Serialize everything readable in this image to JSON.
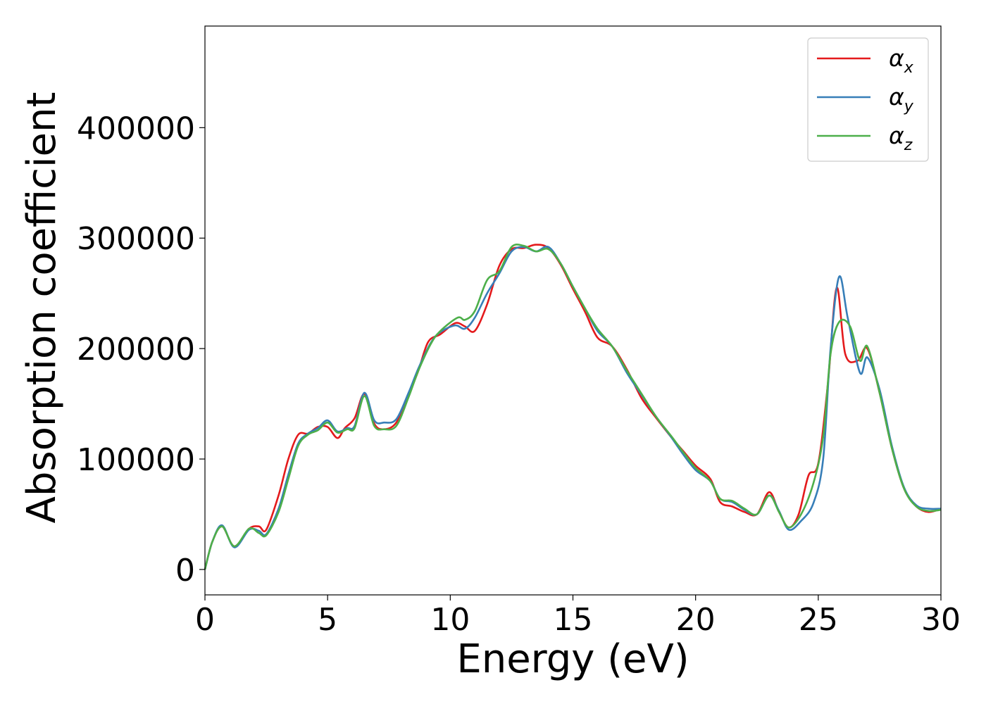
{
  "chart_data": {
    "type": "line",
    "title": "",
    "xlabel": "Energy (eV)",
    "ylabel": "Absorption coefficient",
    "xlim": [
      0,
      30
    ],
    "ylim": [
      -23000,
      492000
    ],
    "xticks": [
      0,
      5,
      10,
      15,
      20,
      25,
      30
    ],
    "yticks": [
      0,
      100000,
      200000,
      300000,
      400000
    ],
    "grid": false,
    "legend_position": "top-right",
    "series": [
      {
        "name": "α_x",
        "symbol": "α",
        "subscript": "x",
        "color": "#e41a1c",
        "points": [
          [
            0,
            0
          ],
          [
            0.3,
            25000
          ],
          [
            0.7,
            39000
          ],
          [
            1.2,
            21000
          ],
          [
            1.8,
            37000
          ],
          [
            2.2,
            39000
          ],
          [
            2.5,
            36000
          ],
          [
            3.0,
            67000
          ],
          [
            3.4,
            100000
          ],
          [
            3.8,
            122000
          ],
          [
            4.2,
            123000
          ],
          [
            4.6,
            129000
          ],
          [
            5.0,
            129000
          ],
          [
            5.4,
            119000
          ],
          [
            5.7,
            128000
          ],
          [
            6.1,
            137000
          ],
          [
            6.5,
            159000
          ],
          [
            6.9,
            132000
          ],
          [
            7.3,
            127000
          ],
          [
            7.8,
            133000
          ],
          [
            8.3,
            158000
          ],
          [
            8.7,
            180000
          ],
          [
            9.1,
            206000
          ],
          [
            9.6,
            213000
          ],
          [
            10.2,
            223000
          ],
          [
            10.6,
            220000
          ],
          [
            11.0,
            216000
          ],
          [
            11.5,
            240000
          ],
          [
            12.0,
            275000
          ],
          [
            12.5,
            290000
          ],
          [
            13.0,
            291000
          ],
          [
            13.5,
            294000
          ],
          [
            14.0,
            291000
          ],
          [
            14.5,
            276000
          ],
          [
            15.0,
            254000
          ],
          [
            15.5,
            233000
          ],
          [
            16.0,
            210000
          ],
          [
            16.6,
            202000
          ],
          [
            17.2,
            181000
          ],
          [
            17.8,
            155000
          ],
          [
            18.4,
            137000
          ],
          [
            19.0,
            120000
          ],
          [
            19.5,
            107000
          ],
          [
            20.0,
            94000
          ],
          [
            20.6,
            82000
          ],
          [
            21.0,
            61000
          ],
          [
            21.5,
            57000
          ],
          [
            22.0,
            52000
          ],
          [
            22.5,
            50000
          ],
          [
            23.0,
            70000
          ],
          [
            23.4,
            52000
          ],
          [
            23.8,
            38000
          ],
          [
            24.2,
            50000
          ],
          [
            24.6,
            85000
          ],
          [
            25.0,
            96000
          ],
          [
            25.4,
            170000
          ],
          [
            25.75,
            255000
          ],
          [
            26.1,
            195000
          ],
          [
            26.6,
            189000
          ],
          [
            27.0,
            200000
          ],
          [
            27.5,
            160000
          ],
          [
            28.0,
            110000
          ],
          [
            28.5,
            73000
          ],
          [
            29.0,
            57000
          ],
          [
            29.5,
            52000
          ],
          [
            30,
            55000
          ]
        ]
      },
      {
        "name": "α_y",
        "symbol": "α",
        "subscript": "y",
        "color": "#377eb8",
        "points": [
          [
            0,
            0
          ],
          [
            0.3,
            25000
          ],
          [
            0.7,
            40000
          ],
          [
            1.2,
            20000
          ],
          [
            1.8,
            36000
          ],
          [
            2.2,
            35000
          ],
          [
            2.5,
            32000
          ],
          [
            3.0,
            55000
          ],
          [
            3.4,
            86000
          ],
          [
            3.8,
            114000
          ],
          [
            4.2,
            123000
          ],
          [
            4.6,
            128000
          ],
          [
            5.0,
            135000
          ],
          [
            5.4,
            125000
          ],
          [
            5.8,
            128000
          ],
          [
            6.1,
            130000
          ],
          [
            6.5,
            160000
          ],
          [
            6.9,
            135000
          ],
          [
            7.3,
            133000
          ],
          [
            7.8,
            136000
          ],
          [
            8.3,
            160000
          ],
          [
            8.7,
            182000
          ],
          [
            9.2,
            205000
          ],
          [
            9.6,
            215000
          ],
          [
            10.2,
            221000
          ],
          [
            10.6,
            218000
          ],
          [
            11.0,
            228000
          ],
          [
            11.5,
            250000
          ],
          [
            12.0,
            268000
          ],
          [
            12.5,
            288000
          ],
          [
            13.0,
            292000
          ],
          [
            13.5,
            288000
          ],
          [
            14.0,
            292000
          ],
          [
            14.5,
            277000
          ],
          [
            15.0,
            256000
          ],
          [
            15.5,
            236000
          ],
          [
            16.0,
            216000
          ],
          [
            16.6,
            202000
          ],
          [
            17.2,
            178000
          ],
          [
            17.8,
            158000
          ],
          [
            18.4,
            138000
          ],
          [
            19.0,
            120000
          ],
          [
            19.5,
            104000
          ],
          [
            20.0,
            90000
          ],
          [
            20.6,
            80000
          ],
          [
            21.0,
            64000
          ],
          [
            21.5,
            61000
          ],
          [
            22.0,
            54000
          ],
          [
            22.5,
            50000
          ],
          [
            23.0,
            67000
          ],
          [
            23.4,
            53000
          ],
          [
            23.8,
            36000
          ],
          [
            24.3,
            44000
          ],
          [
            24.8,
            60000
          ],
          [
            25.2,
            100000
          ],
          [
            25.5,
            200000
          ],
          [
            25.85,
            265000
          ],
          [
            26.2,
            228000
          ],
          [
            26.7,
            178000
          ],
          [
            27.0,
            192000
          ],
          [
            27.5,
            163000
          ],
          [
            28.0,
            112000
          ],
          [
            28.5,
            74000
          ],
          [
            29.0,
            58000
          ],
          [
            29.5,
            55000
          ],
          [
            30,
            55000
          ]
        ]
      },
      {
        "name": "α_z",
        "symbol": "α",
        "subscript": "z",
        "color": "#4daf4a",
        "points": [
          [
            0,
            0
          ],
          [
            0.3,
            25000
          ],
          [
            0.7,
            39000
          ],
          [
            1.2,
            21000
          ],
          [
            1.8,
            37000
          ],
          [
            2.2,
            33000
          ],
          [
            2.5,
            31000
          ],
          [
            3.0,
            52000
          ],
          [
            3.4,
            82000
          ],
          [
            3.8,
            112000
          ],
          [
            4.2,
            122000
          ],
          [
            4.6,
            126000
          ],
          [
            5.0,
            133000
          ],
          [
            5.4,
            124000
          ],
          [
            5.8,
            127000
          ],
          [
            6.1,
            128000
          ],
          [
            6.5,
            157000
          ],
          [
            6.9,
            130000
          ],
          [
            7.3,
            127000
          ],
          [
            7.8,
            130000
          ],
          [
            8.3,
            156000
          ],
          [
            8.7,
            180000
          ],
          [
            9.2,
            204000
          ],
          [
            9.6,
            216000
          ],
          [
            10.3,
            228000
          ],
          [
            10.6,
            226000
          ],
          [
            11.0,
            234000
          ],
          [
            11.5,
            262000
          ],
          [
            12.0,
            270000
          ],
          [
            12.5,
            292000
          ],
          [
            13.0,
            293000
          ],
          [
            13.5,
            288000
          ],
          [
            14.0,
            290000
          ],
          [
            14.5,
            277000
          ],
          [
            15.0,
            256000
          ],
          [
            15.5,
            236000
          ],
          [
            16.0,
            218000
          ],
          [
            16.6,
            202000
          ],
          [
            17.2,
            180000
          ],
          [
            17.8,
            159000
          ],
          [
            18.4,
            138000
          ],
          [
            19.0,
            121000
          ],
          [
            19.5,
            106000
          ],
          [
            20.0,
            92000
          ],
          [
            20.6,
            80000
          ],
          [
            21.0,
            64000
          ],
          [
            21.5,
            62000
          ],
          [
            22.0,
            55000
          ],
          [
            22.5,
            50000
          ],
          [
            23.0,
            67000
          ],
          [
            23.4,
            52000
          ],
          [
            23.8,
            38000
          ],
          [
            24.3,
            50000
          ],
          [
            24.8,
            78000
          ],
          [
            25.2,
            120000
          ],
          [
            25.5,
            195000
          ],
          [
            25.85,
            224000
          ],
          [
            26.3,
            220000
          ],
          [
            26.7,
            189000
          ],
          [
            27.0,
            202000
          ],
          [
            27.5,
            160000
          ],
          [
            28.0,
            110000
          ],
          [
            28.5,
            73000
          ],
          [
            29.0,
            57000
          ],
          [
            29.5,
            53000
          ],
          [
            30,
            54000
          ]
        ]
      }
    ]
  }
}
